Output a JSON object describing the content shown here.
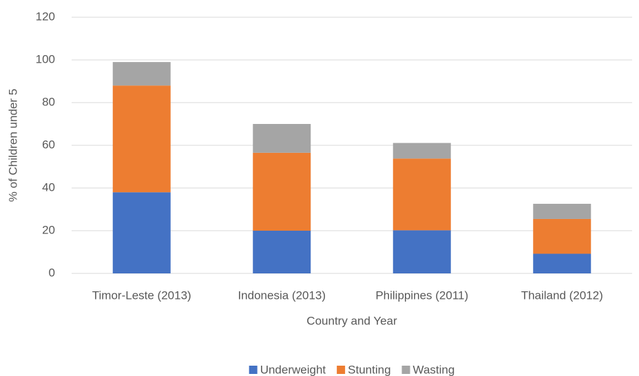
{
  "chart_data": {
    "type": "stacked_bar",
    "x_label": "Country and Year",
    "y_label": "% of Children under 5",
    "categories": [
      "Timor-Leste (2013)",
      "Indonesia (2013)",
      "Philippines (2011)",
      "Thailand (2012)"
    ],
    "series": [
      {
        "name": "Underweight",
        "color": "#4472c4",
        "values": [
          38,
          20,
          20.2,
          9.2
        ]
      },
      {
        "name": "Stunting",
        "color": "#ed7d31",
        "values": [
          50,
          36.5,
          33.6,
          16.3
        ]
      },
      {
        "name": "Wasting",
        "color": "#a5a5a5",
        "values": [
          11,
          13.5,
          7.3,
          7.1
        ]
      }
    ],
    "ylim": [
      0,
      120
    ],
    "yticks": [
      0,
      20,
      40,
      60,
      80,
      100,
      120
    ],
    "grid": true,
    "legend": "bottom"
  }
}
